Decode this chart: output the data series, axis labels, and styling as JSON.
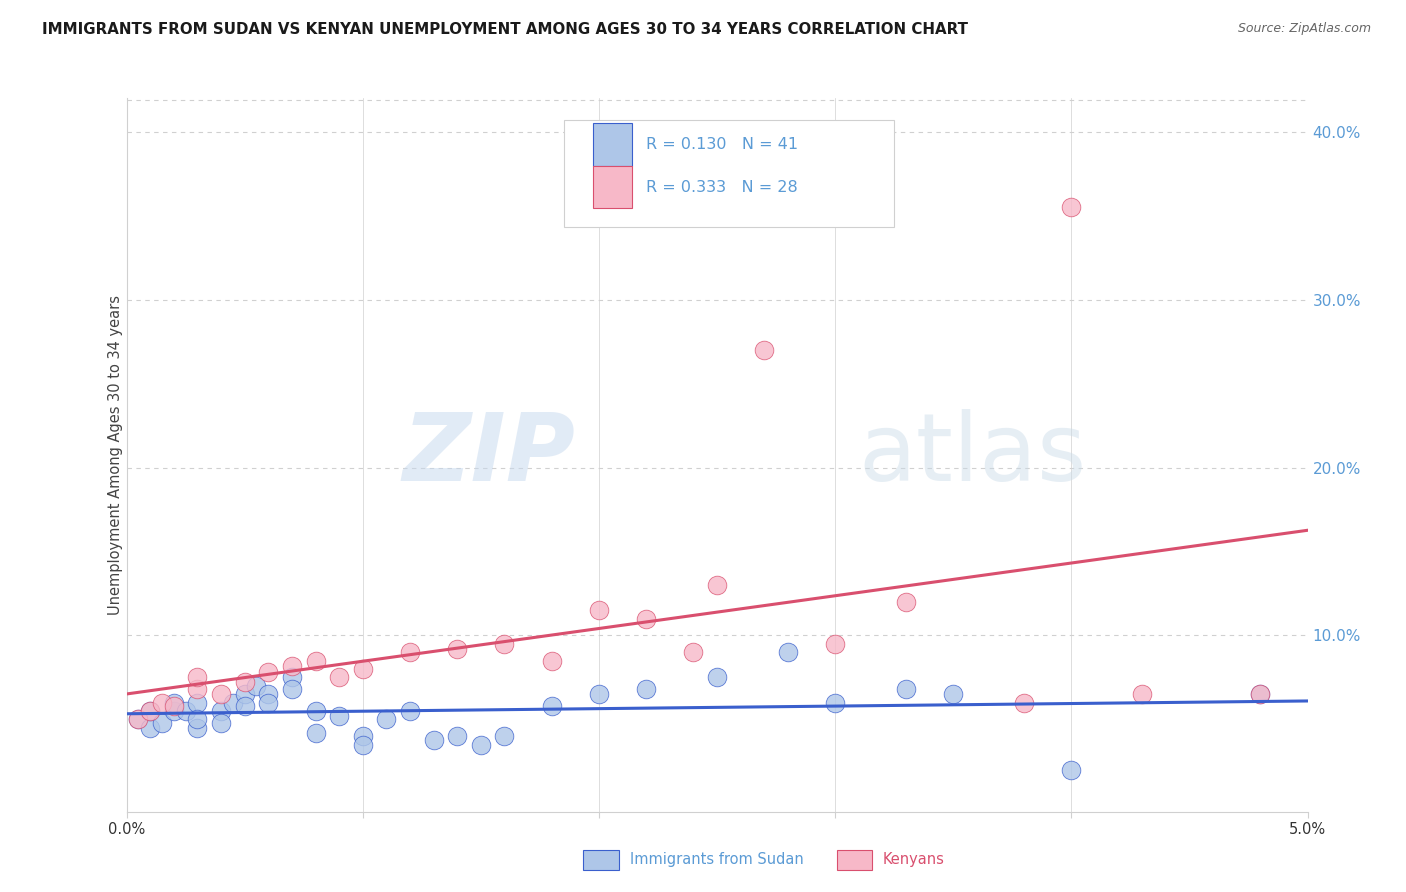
{
  "title": "IMMIGRANTS FROM SUDAN VS KENYAN UNEMPLOYMENT AMONG AGES 30 TO 34 YEARS CORRELATION CHART",
  "source": "Source: ZipAtlas.com",
  "ylabel": "Unemployment Among Ages 30 to 34 years",
  "xlim": [
    0.0,
    0.05
  ],
  "ylim": [
    -0.005,
    0.42
  ],
  "right_yticks": [
    0.0,
    0.1,
    0.2,
    0.3,
    0.4
  ],
  "right_yticklabels": [
    "",
    "10.0%",
    "20.0%",
    "30.0%",
    "40.0%"
  ],
  "watermark_zip": "ZIP",
  "watermark_atlas": "atlas",
  "legend_r1": "R = 0.130",
  "legend_n1": "N = 41",
  "legend_r2": "R = 0.333",
  "legend_n2": "N = 28",
  "color_blue": "#aec6e8",
  "color_pink": "#f7b8c8",
  "line_color_blue": "#3a5fcd",
  "line_color_pink": "#d94f6e",
  "right_axis_color": "#5b9bd5",
  "title_color": "#1a1a1a",
  "source_color": "#666666",
  "sudan_x": [
    0.0005,
    0.001,
    0.001,
    0.0015,
    0.002,
    0.002,
    0.0025,
    0.003,
    0.003,
    0.003,
    0.004,
    0.004,
    0.0045,
    0.005,
    0.005,
    0.0055,
    0.006,
    0.006,
    0.007,
    0.007,
    0.008,
    0.008,
    0.009,
    0.01,
    0.01,
    0.011,
    0.012,
    0.013,
    0.014,
    0.015,
    0.016,
    0.018,
    0.02,
    0.022,
    0.025,
    0.028,
    0.03,
    0.033,
    0.035,
    0.04,
    0.048
  ],
  "sudan_y": [
    0.05,
    0.045,
    0.055,
    0.048,
    0.055,
    0.06,
    0.055,
    0.045,
    0.06,
    0.05,
    0.055,
    0.048,
    0.06,
    0.065,
    0.058,
    0.07,
    0.065,
    0.06,
    0.075,
    0.068,
    0.055,
    0.042,
    0.052,
    0.04,
    0.035,
    0.05,
    0.055,
    0.038,
    0.04,
    0.035,
    0.04,
    0.058,
    0.065,
    0.068,
    0.075,
    0.09,
    0.06,
    0.068,
    0.065,
    0.02,
    0.065
  ],
  "kenyan_x": [
    0.0005,
    0.001,
    0.0015,
    0.002,
    0.003,
    0.003,
    0.004,
    0.005,
    0.006,
    0.007,
    0.008,
    0.009,
    0.01,
    0.012,
    0.014,
    0.016,
    0.018,
    0.02,
    0.022,
    0.024,
    0.025,
    0.027,
    0.03,
    0.033,
    0.038,
    0.04,
    0.043,
    0.048
  ],
  "kenyan_y": [
    0.05,
    0.055,
    0.06,
    0.058,
    0.068,
    0.075,
    0.065,
    0.072,
    0.078,
    0.082,
    0.085,
    0.075,
    0.08,
    0.09,
    0.092,
    0.095,
    0.085,
    0.115,
    0.11,
    0.09,
    0.13,
    0.27,
    0.095,
    0.12,
    0.06,
    0.355,
    0.065,
    0.065
  ],
  "grid_color": "#d0d0d0",
  "bg_color": "#ffffff"
}
